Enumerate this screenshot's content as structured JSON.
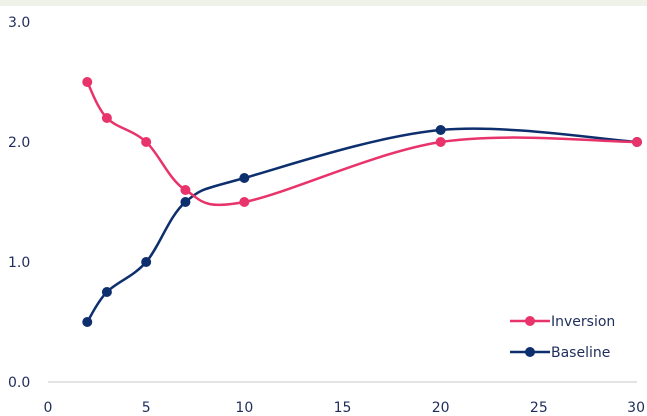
{
  "chart_data": {
    "type": "line",
    "xlim": [
      0,
      30
    ],
    "ylim": [
      0,
      3
    ],
    "x_ticks": [
      0,
      5,
      10,
      15,
      20,
      25,
      30
    ],
    "x_tick_labels": [
      "0",
      "5",
      "10",
      "15",
      "20",
      "25",
      "30"
    ],
    "y_ticks": [
      0,
      1,
      2,
      3
    ],
    "y_tick_labels": [
      "0.0",
      "1.0",
      "2.0",
      "3.0"
    ],
    "grid": false,
    "legend_position": "bottom-right",
    "series": [
      {
        "name": "Inversion",
        "color": "#e8336b",
        "x": [
          2,
          3,
          5,
          7,
          10,
          20,
          30
        ],
        "y": [
          2.5,
          2.2,
          2.0,
          1.6,
          1.5,
          2.0,
          2.0
        ]
      },
      {
        "name": "Baseline",
        "color": "#0d2f6e",
        "x": [
          2,
          3,
          5,
          7,
          10,
          20,
          30
        ],
        "y": [
          0.5,
          0.75,
          1.0,
          1.5,
          1.7,
          2.1,
          2.0
        ]
      }
    ]
  },
  "colors": {
    "top_band": "#eef2e8",
    "axis": "#c9c9c9",
    "text": "#1f2d5a"
  }
}
